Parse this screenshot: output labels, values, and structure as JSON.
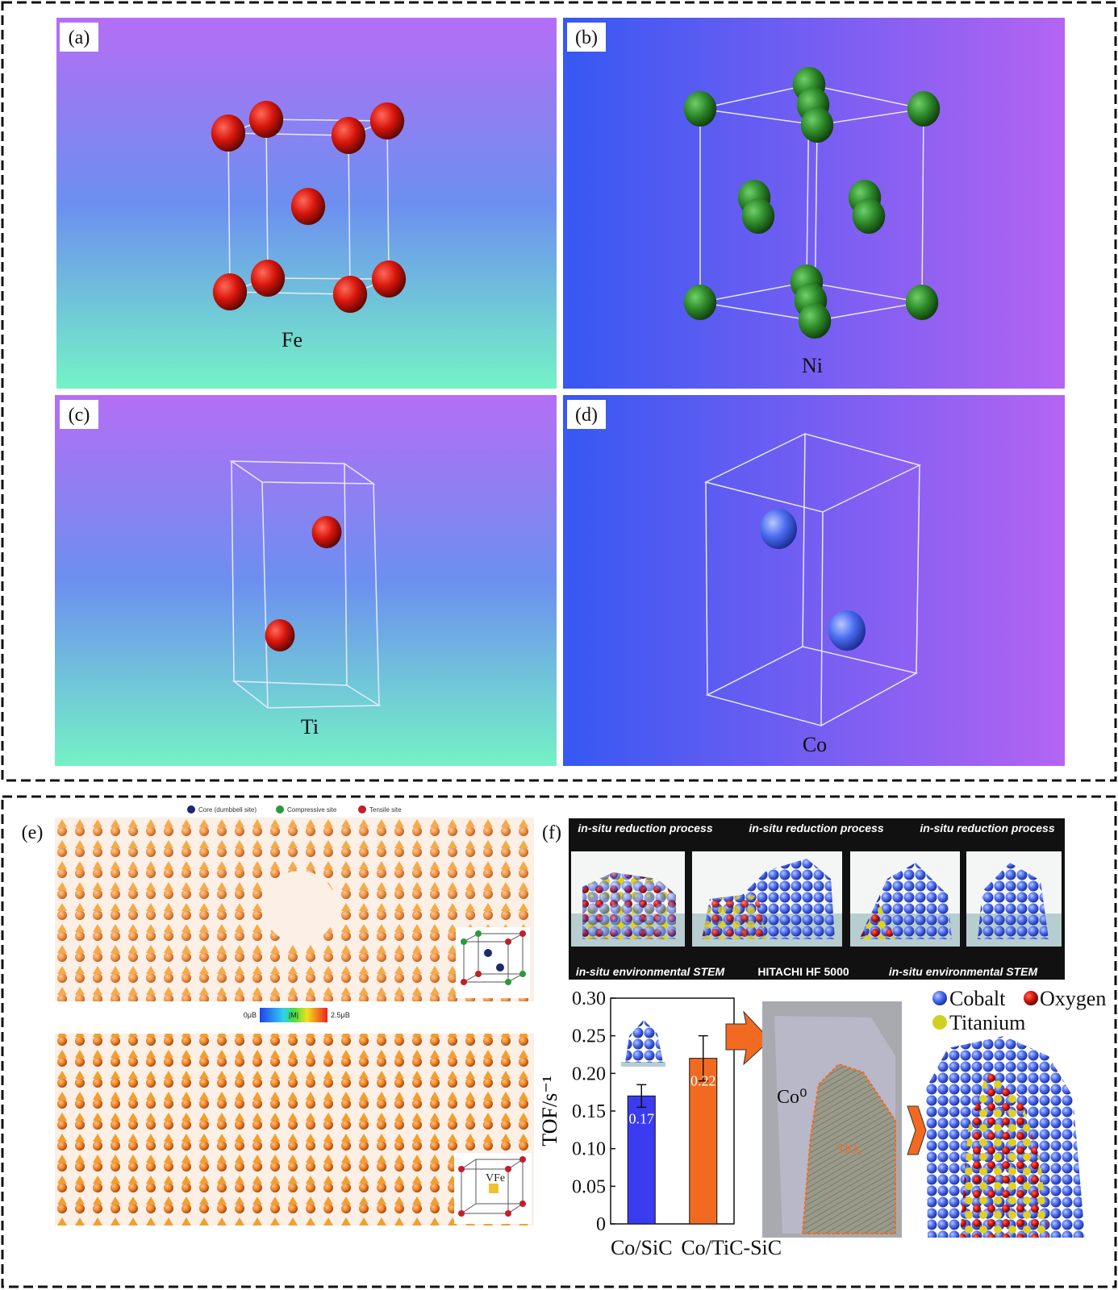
{
  "panel_a": {
    "label": "(a)",
    "element": "Fe"
  },
  "panel_b": {
    "label": "(b)",
    "element": "Ni"
  },
  "panel_c": {
    "label": "(c)",
    "element": "Ti"
  },
  "panel_d": {
    "label": "(d)",
    "element": "Co"
  },
  "panel_e": {
    "label": "(e)",
    "legend": [
      "Core (dumbbell site)",
      "Compressive site",
      "Tensile site"
    ],
    "colorbar": [
      "0μB",
      "|M|",
      "2.5μB"
    ],
    "inset": "VFe"
  },
  "panel_f": {
    "label": "(f)",
    "film_top": [
      "in-situ reduction process",
      "in-situ reduction process",
      "in-situ reduction process"
    ],
    "film_bottom": [
      "in-situ environmental STEM",
      "HITACHI HF 5000",
      "in-situ environmental STEM"
    ],
    "micrograph": [
      "Co⁰",
      "TiO₂"
    ],
    "legend": [
      "Cobalt",
      "Oxygen",
      "Titanium"
    ]
  },
  "chart_data": {
    "type": "bar",
    "ylabel": "TOF/s⁻¹",
    "categories": [
      "Co/SiC",
      "Co/TiC-SiC"
    ],
    "values": [
      0.17,
      0.22
    ],
    "errors": [
      0.015,
      0.03
    ],
    "colors": [
      "#3b3bf2",
      "#f26a21"
    ],
    "ylim": [
      0,
      0.3
    ],
    "yticks": [
      0,
      0.05,
      {
        "value": 0.1,
        "label": "0.10"
      },
      0.15,
      {
        "value": 0.2,
        "label": "0.20"
      },
      0.25,
      {
        "value": 0.3,
        "label": "0.30"
      }
    ]
  }
}
